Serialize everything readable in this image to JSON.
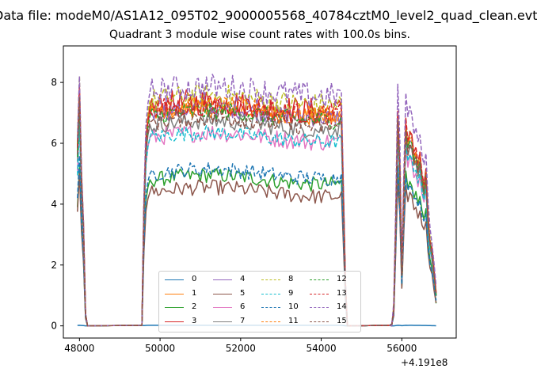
{
  "figure": {
    "suptitle": "Data file: modeM0/AS1A12_095T02_9000005568_40784cztM0_level2_quad_clean.evt",
    "title": "Quadrant 3 module wise count rates with 100.0s bins.",
    "x_offset_label": "+4.191e8"
  },
  "chart_data": {
    "type": "line",
    "title": "Quadrant 3 module wise count rates with 100.0s bins.",
    "xlabel": "",
    "ylabel": "",
    "xlim": [
      47600,
      57350
    ],
    "ylim": [
      -0.4,
      9.2
    ],
    "x_ticks": [
      48000,
      50000,
      52000,
      54000,
      56000
    ],
    "y_ticks": [
      0,
      2,
      4,
      6,
      8
    ],
    "x_tick_labels": [
      "48000",
      "50000",
      "52000",
      "54000",
      "56000"
    ],
    "y_tick_labels": [
      "0",
      "2",
      "4",
      "6",
      "8"
    ],
    "x_offset": "+4.191e8",
    "grid": false,
    "legend": "lower-center",
    "segments": [
      {
        "x": [
          47950,
          48000,
          48050,
          48100,
          48150,
          48200
        ],
        "frac": [
          0.75,
          1.0,
          0.62,
          0.42,
          0.05,
          0.0
        ]
      },
      {
        "x": [
          49550,
          49600,
          49650,
          49700,
          49750
        ],
        "frac": [
          0.0,
          0.55,
          0.86,
          0.95,
          1.0
        ]
      },
      {
        "x": [
          54500,
          54550,
          54600,
          54650
        ],
        "frac": [
          1.0,
          0.6,
          0.2,
          0.0
        ]
      },
      {
        "x": [
          55750,
          55800,
          55850,
          55900,
          55950,
          56000,
          56050,
          56100,
          56150,
          56200,
          56250,
          56300,
          56350,
          56400,
          56450,
          56500,
          56550,
          56600,
          56650,
          56700,
          56750,
          56800,
          56850
        ],
        "frac": [
          0.0,
          0.08,
          0.5,
          1.0,
          0.75,
          0.25,
          0.65,
          0.95,
          0.85,
          0.9,
          0.88,
          0.8,
          0.82,
          0.75,
          0.8,
          0.7,
          0.65,
          0.72,
          0.5,
          0.4,
          0.35,
          0.25,
          0.15
        ]
      }
    ],
    "series": [
      {
        "name": "0",
        "color": "#1f77b4",
        "style": "solid",
        "level": 0.02,
        "amp": 0.0,
        "peak": 0.02,
        "late": 0.02
      },
      {
        "name": "1",
        "color": "#ff7f0e",
        "style": "solid",
        "level": 7.0,
        "amp": 0.3,
        "peak": 7.8,
        "late": 6.6
      },
      {
        "name": "2",
        "color": "#2ca02c",
        "style": "solid",
        "level": 4.8,
        "amp": 0.25,
        "peak": 5.2,
        "late": 5.3
      },
      {
        "name": "3",
        "color": "#d62728",
        "style": "solid",
        "level": 7.2,
        "amp": 0.45,
        "peak": 7.9,
        "late": 7.0
      },
      {
        "name": "4",
        "color": "#9467bd",
        "style": "solid",
        "level": 7.0,
        "amp": 0.3,
        "peak": 7.6,
        "late": 6.8
      },
      {
        "name": "5",
        "color": "#8c564b",
        "style": "solid",
        "level": 4.4,
        "amp": 0.25,
        "peak": 5.0,
        "late": 4.8
      },
      {
        "name": "6",
        "color": "#e377c2",
        "style": "solid",
        "level": 6.2,
        "amp": 0.3,
        "peak": 6.8,
        "late": 6.2
      },
      {
        "name": "7",
        "color": "#7f7f7f",
        "style": "solid",
        "level": 6.6,
        "amp": 0.3,
        "peak": 7.2,
        "late": 6.5
      },
      {
        "name": "8",
        "color": "#bcbd22",
        "style": "dashed",
        "level": 7.4,
        "amp": 0.4,
        "peak": 8.2,
        "late": 7.0
      },
      {
        "name": "9",
        "color": "#17becf",
        "style": "dashed",
        "level": 6.2,
        "amp": 0.25,
        "peak": 6.6,
        "late": 6.3
      },
      {
        "name": "10",
        "color": "#1f77b4",
        "style": "dashed",
        "level": 5.0,
        "amp": 0.25,
        "peak": 5.6,
        "late": 5.2
      },
      {
        "name": "11",
        "color": "#ff7f0e",
        "style": "dashed",
        "level": 7.1,
        "amp": 0.3,
        "peak": 7.7,
        "late": 6.9
      },
      {
        "name": "12",
        "color": "#2ca02c",
        "style": "dashed",
        "level": 6.9,
        "amp": 0.3,
        "peak": 7.4,
        "late": 6.8
      },
      {
        "name": "13",
        "color": "#d62728",
        "style": "dashed",
        "level": 7.1,
        "amp": 0.35,
        "peak": 7.8,
        "late": 7.1
      },
      {
        "name": "14",
        "color": "#9467bd",
        "style": "dashed",
        "level": 7.7,
        "amp": 0.45,
        "peak": 8.2,
        "late": 8.0
      },
      {
        "name": "15",
        "color": "#8c564b",
        "style": "dashed",
        "level": 6.7,
        "amp": 0.3,
        "peak": 7.5,
        "late": 6.7
      }
    ]
  }
}
